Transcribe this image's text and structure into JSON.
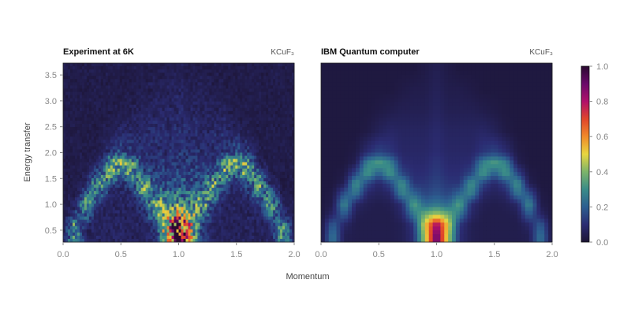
{
  "chart_data": [
    {
      "type": "heatmap",
      "title": "Experiment at 6K",
      "annotation": "KCuF₃",
      "xlabel": "Momentum",
      "ylabel": "Energy transfer",
      "xlim": [
        0,
        2
      ],
      "ylim": [
        0.27,
        3.73
      ],
      "xticks": [
        "0.0",
        "0.5",
        "1.0",
        "1.5",
        "2.0"
      ],
      "yticks": [
        "0.5",
        "1.0",
        "1.5",
        "2.0",
        "2.5",
        "3.0",
        "3.5"
      ],
      "noisy": true,
      "x": [
        0,
        0.1,
        0.2,
        0.3,
        0.4,
        0.5,
        0.6,
        0.7,
        0.8,
        0.9,
        1.0,
        1.1,
        1.2,
        1.3,
        1.4,
        1.5,
        1.6,
        1.7,
        1.8,
        1.9,
        2.0
      ],
      "y": [
        0.4,
        0.6,
        0.8,
        1.0,
        1.2,
        1.4,
        1.6,
        1.8,
        2.0,
        2.4,
        2.8,
        3.2,
        3.6
      ],
      "values": [
        [
          0.05,
          0.3,
          0.05,
          0.05,
          0.05,
          0.05,
          0.05,
          0.05,
          0.1,
          0.45,
          1.0,
          0.45,
          0.1,
          0.05,
          0.05,
          0.05,
          0.05,
          0.05,
          0.05,
          0.3,
          0.05
        ],
        [
          0.02,
          0.3,
          0.08,
          0.05,
          0.05,
          0.05,
          0.05,
          0.05,
          0.12,
          0.55,
          0.85,
          0.55,
          0.12,
          0.05,
          0.05,
          0.05,
          0.05,
          0.05,
          0.08,
          0.3,
          0.02
        ],
        [
          0.02,
          0.1,
          0.2,
          0.05,
          0.05,
          0.05,
          0.05,
          0.08,
          0.25,
          0.4,
          0.5,
          0.4,
          0.25,
          0.08,
          0.05,
          0.05,
          0.05,
          0.05,
          0.2,
          0.1,
          0.02
        ],
        [
          0.02,
          0.05,
          0.35,
          0.08,
          0.05,
          0.05,
          0.05,
          0.1,
          0.4,
          0.25,
          0.3,
          0.25,
          0.4,
          0.1,
          0.05,
          0.05,
          0.05,
          0.08,
          0.35,
          0.05,
          0.02
        ],
        [
          0.02,
          0.03,
          0.2,
          0.25,
          0.08,
          0.06,
          0.08,
          0.3,
          0.25,
          0.2,
          0.22,
          0.2,
          0.25,
          0.3,
          0.08,
          0.06,
          0.08,
          0.25,
          0.2,
          0.03,
          0.02
        ],
        [
          0.02,
          0.02,
          0.05,
          0.35,
          0.15,
          0.08,
          0.15,
          0.35,
          0.15,
          0.15,
          0.18,
          0.15,
          0.15,
          0.35,
          0.15,
          0.08,
          0.15,
          0.35,
          0.05,
          0.02,
          0.02
        ],
        [
          0.02,
          0.02,
          0.03,
          0.15,
          0.35,
          0.2,
          0.35,
          0.15,
          0.12,
          0.12,
          0.15,
          0.12,
          0.12,
          0.15,
          0.35,
          0.2,
          0.35,
          0.15,
          0.03,
          0.02,
          0.02
        ],
        [
          0.02,
          0.02,
          0.02,
          0.05,
          0.3,
          0.38,
          0.3,
          0.1,
          0.1,
          0.1,
          0.12,
          0.1,
          0.1,
          0.1,
          0.3,
          0.38,
          0.3,
          0.05,
          0.02,
          0.02,
          0.02
        ],
        [
          0.02,
          0.02,
          0.02,
          0.03,
          0.1,
          0.15,
          0.1,
          0.08,
          0.08,
          0.08,
          0.1,
          0.08,
          0.08,
          0.08,
          0.1,
          0.15,
          0.1,
          0.03,
          0.02,
          0.02,
          0.02
        ],
        [
          0.02,
          0.02,
          0.02,
          0.02,
          0.03,
          0.06,
          0.07,
          0.07,
          0.07,
          0.07,
          0.08,
          0.07,
          0.07,
          0.07,
          0.07,
          0.06,
          0.03,
          0.02,
          0.02,
          0.02,
          0.02
        ],
        [
          0.02,
          0.02,
          0.02,
          0.02,
          0.02,
          0.02,
          0.04,
          0.05,
          0.05,
          0.05,
          0.06,
          0.05,
          0.05,
          0.05,
          0.04,
          0.02,
          0.02,
          0.02,
          0.02,
          0.02,
          0.02
        ],
        [
          0.02,
          0.02,
          0.02,
          0.02,
          0.02,
          0.02,
          0.02,
          0.03,
          0.04,
          0.04,
          0.05,
          0.04,
          0.04,
          0.03,
          0.02,
          0.02,
          0.02,
          0.02,
          0.02,
          0.02,
          0.02
        ],
        [
          0.02,
          0.02,
          0.02,
          0.02,
          0.02,
          0.02,
          0.02,
          0.02,
          0.02,
          0.03,
          0.03,
          0.03,
          0.02,
          0.02,
          0.02,
          0.02,
          0.02,
          0.02,
          0.02,
          0.02,
          0.02
        ]
      ]
    },
    {
      "type": "heatmap",
      "title": "IBM Quantum computer",
      "annotation": "KCuF₃",
      "xlim": [
        0,
        2
      ],
      "ylim": [
        0.27,
        3.73
      ],
      "xticks": [
        "0.0",
        "0.5",
        "1.0",
        "1.5",
        "2.0"
      ],
      "noisy": false,
      "x": [
        0,
        0.1,
        0.2,
        0.3,
        0.4,
        0.5,
        0.6,
        0.7,
        0.8,
        0.9,
        1.0,
        1.1,
        1.2,
        1.3,
        1.4,
        1.5,
        1.6,
        1.7,
        1.8,
        1.9,
        2.0
      ],
      "y": [
        0.4,
        0.6,
        0.8,
        1.0,
        1.2,
        1.4,
        1.6,
        1.8,
        2.0,
        2.4,
        2.8,
        3.2,
        3.6
      ],
      "values": [
        [
          0.02,
          0.25,
          0.05,
          0.04,
          0.04,
          0.04,
          0.04,
          0.05,
          0.1,
          0.45,
          0.95,
          0.45,
          0.1,
          0.05,
          0.04,
          0.04,
          0.04,
          0.04,
          0.05,
          0.25,
          0.02
        ],
        [
          0.02,
          0.2,
          0.08,
          0.04,
          0.04,
          0.04,
          0.04,
          0.05,
          0.12,
          0.5,
          0.85,
          0.5,
          0.12,
          0.05,
          0.04,
          0.04,
          0.04,
          0.04,
          0.08,
          0.2,
          0.02
        ],
        [
          0.02,
          0.08,
          0.2,
          0.05,
          0.04,
          0.04,
          0.04,
          0.08,
          0.25,
          0.38,
          0.45,
          0.38,
          0.25,
          0.08,
          0.04,
          0.04,
          0.04,
          0.05,
          0.2,
          0.08,
          0.02
        ],
        [
          0.02,
          0.04,
          0.3,
          0.08,
          0.05,
          0.04,
          0.05,
          0.1,
          0.35,
          0.22,
          0.25,
          0.22,
          0.35,
          0.1,
          0.05,
          0.04,
          0.05,
          0.08,
          0.3,
          0.04,
          0.02
        ],
        [
          0.02,
          0.03,
          0.18,
          0.25,
          0.08,
          0.06,
          0.08,
          0.28,
          0.22,
          0.15,
          0.18,
          0.15,
          0.22,
          0.28,
          0.08,
          0.06,
          0.08,
          0.25,
          0.18,
          0.03,
          0.02
        ],
        [
          0.02,
          0.02,
          0.05,
          0.32,
          0.15,
          0.08,
          0.15,
          0.32,
          0.12,
          0.12,
          0.15,
          0.12,
          0.12,
          0.32,
          0.15,
          0.08,
          0.15,
          0.32,
          0.05,
          0.02,
          0.02
        ],
        [
          0.02,
          0.02,
          0.03,
          0.15,
          0.33,
          0.2,
          0.33,
          0.15,
          0.1,
          0.1,
          0.13,
          0.1,
          0.1,
          0.15,
          0.33,
          0.2,
          0.33,
          0.15,
          0.03,
          0.02,
          0.02
        ],
        [
          0.02,
          0.02,
          0.02,
          0.05,
          0.28,
          0.34,
          0.28,
          0.1,
          0.09,
          0.09,
          0.12,
          0.09,
          0.09,
          0.1,
          0.28,
          0.34,
          0.28,
          0.05,
          0.02,
          0.02,
          0.02
        ],
        [
          0.02,
          0.02,
          0.02,
          0.03,
          0.1,
          0.15,
          0.12,
          0.08,
          0.08,
          0.08,
          0.1,
          0.08,
          0.08,
          0.08,
          0.12,
          0.15,
          0.1,
          0.03,
          0.02,
          0.02,
          0.02
        ],
        [
          0.02,
          0.02,
          0.02,
          0.02,
          0.03,
          0.06,
          0.08,
          0.07,
          0.07,
          0.07,
          0.09,
          0.07,
          0.07,
          0.07,
          0.08,
          0.06,
          0.03,
          0.02,
          0.02,
          0.02,
          0.02
        ],
        [
          0.02,
          0.02,
          0.02,
          0.02,
          0.02,
          0.03,
          0.04,
          0.05,
          0.05,
          0.05,
          0.07,
          0.05,
          0.05,
          0.05,
          0.04,
          0.03,
          0.02,
          0.02,
          0.02,
          0.02,
          0.02
        ],
        [
          0.02,
          0.02,
          0.02,
          0.02,
          0.02,
          0.02,
          0.02,
          0.03,
          0.04,
          0.04,
          0.06,
          0.04,
          0.04,
          0.03,
          0.02,
          0.02,
          0.02,
          0.02,
          0.02,
          0.02,
          0.02
        ],
        [
          0.02,
          0.02,
          0.02,
          0.02,
          0.02,
          0.02,
          0.02,
          0.02,
          0.02,
          0.03,
          0.05,
          0.03,
          0.02,
          0.02,
          0.02,
          0.02,
          0.02,
          0.02,
          0.02,
          0.02,
          0.02
        ]
      ]
    }
  ],
  "colorbar": {
    "range": [
      0,
      1
    ],
    "ticks": [
      "0.0",
      "0.2",
      "0.4",
      "0.6",
      "0.8",
      "1.0"
    ],
    "colors": [
      "#1c1434",
      "#2b2c72",
      "#2c5e90",
      "#3a8c88",
      "#7db46a",
      "#e8d640",
      "#f08a2a",
      "#e0452a",
      "#b0106a",
      "#6a0a6a",
      "#2a0a30"
    ]
  }
}
